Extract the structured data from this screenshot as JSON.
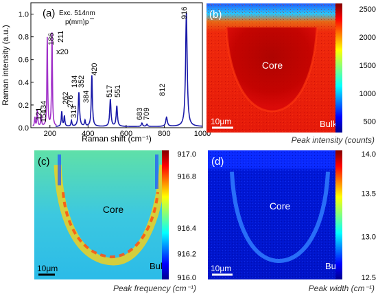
{
  "chart_data": [
    {
      "panel": "(a)",
      "type": "line",
      "annotation_excitation": "Exc. 514nm",
      "annotation_geometry": "p(mm)p",
      "annotation_scale": "x20",
      "xlabel": "Raman shift (cm⁻¹)",
      "ylabel": "Raman intensity (a.u.)",
      "xlim": [
        100,
        1000
      ],
      "ylim": [
        0,
        1.1
      ],
      "x_ticks": [
        "200",
        "400",
        "600",
        "800",
        "1000"
      ],
      "y_ticks": [
        "0.0",
        "0.2",
        "0.4",
        "0.6",
        "0.8",
        "1.0"
      ],
      "peak_labels": [
        "121",
        "134",
        "154",
        "186",
        "211",
        "262",
        "276",
        "313",
        "134",
        "352",
        "384",
        "420",
        "517",
        "551",
        "683",
        "709",
        "812",
        "916"
      ],
      "series": [
        {
          "color": "#1a1aa8",
          "peaks": [
            {
              "x": 262,
              "y": 0.13,
              "w": 6
            },
            {
              "x": 276,
              "y": 0.09,
              "w": 6
            },
            {
              "x": 313,
              "y": 0.05,
              "w": 6
            },
            {
              "x": 352,
              "y": 0.3,
              "w": 8
            },
            {
              "x": 384,
              "y": 0.05,
              "w": 6
            },
            {
              "x": 420,
              "y": 0.45,
              "w": 7
            },
            {
              "x": 517,
              "y": 0.24,
              "w": 8
            },
            {
              "x": 551,
              "y": 0.18,
              "w": 8
            },
            {
              "x": 683,
              "y": 0.03,
              "w": 8
            },
            {
              "x": 709,
              "y": 0.02,
              "w": 8
            },
            {
              "x": 812,
              "y": 0.08,
              "w": 10
            },
            {
              "x": 916,
              "y": 1.0,
              "w": 10
            }
          ]
        },
        {
          "color": "#a030c8",
          "peaks": [
            {
              "x": 121,
              "y": 0.08,
              "w": 5
            },
            {
              "x": 134,
              "y": 0.14,
              "w": 5
            },
            {
              "x": 154,
              "y": 0.1,
              "w": 5
            },
            {
              "x": 186,
              "y": 0.78,
              "w": 5
            },
            {
              "x": 211,
              "y": 0.82,
              "w": 5
            }
          ]
        }
      ]
    },
    {
      "panel": "(b)",
      "type": "heatmap",
      "caption": "Peak intensity (counts)",
      "colorbar_ticks": [
        "2500",
        "2000",
        "1500",
        "1000",
        "500"
      ],
      "colorbar_range": [
        300,
        2600
      ],
      "region_label_core": "Core",
      "region_label_bulk": "Bulk",
      "scalebar_label": "10μm"
    },
    {
      "panel": "(c)",
      "type": "heatmap",
      "caption": "Peak frequency (cm⁻¹)",
      "colorbar_ticks": [
        "917.0",
        "916.8",
        "916.4",
        "916.2",
        "916.0"
      ],
      "colorbar_range": [
        916.0,
        917.0
      ],
      "region_label_core": "Core",
      "region_label_bulk": "Bulk",
      "scalebar_label": "10μm"
    },
    {
      "panel": "(d)",
      "type": "heatmap",
      "caption": "Peak width (cm⁻¹)",
      "colorbar_ticks": [
        "14.0",
        "13.5",
        "13.0",
        "12.5"
      ],
      "colorbar_range": [
        12.5,
        14.0
      ],
      "region_label_core": "Core",
      "region_label_bulk": "Bulk",
      "scalebar_label": "10μm"
    }
  ]
}
